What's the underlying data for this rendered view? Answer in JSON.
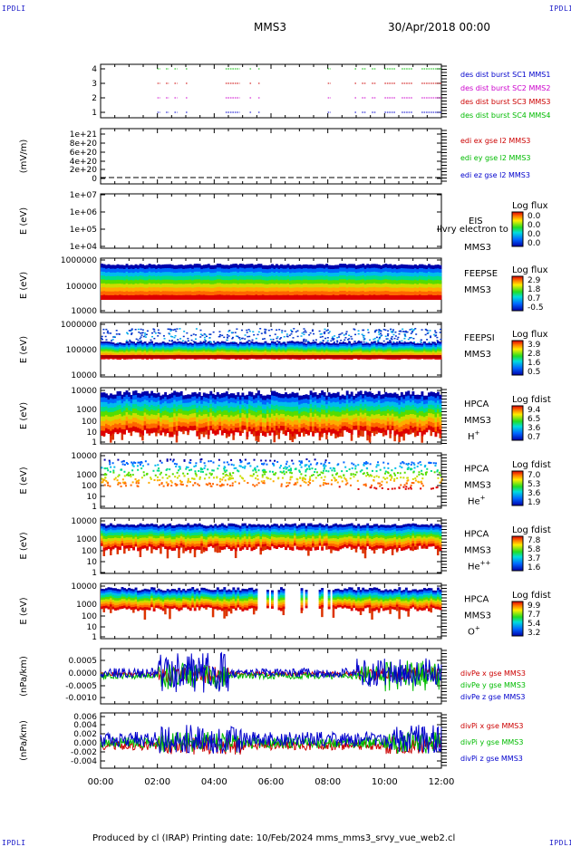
{
  "header": {
    "left_tag": "IPDLI",
    "right_tag": "IPDLI",
    "mission": "MMS3",
    "datetime": "30/Apr/2018 00:00"
  },
  "footer": {
    "left_tag": "IPDLI",
    "right_tag": "IPDLI",
    "text": "Produced by cl (IRAP)   Printing date: 10/Feb/2024   mms_mms3_srvy_vue_web2.cl"
  },
  "x_axis": {
    "ticks": [
      "00:00",
      "02:00",
      "04:00",
      "06:00",
      "08:00",
      "10:00",
      "12:00"
    ]
  },
  "panels": [
    {
      "id": "burst",
      "y_ticks": [
        "4",
        "3",
        "2",
        "1"
      ],
      "labels": [
        {
          "text": "des dist burst SC1 MMS1",
          "color": "#0000cc"
        },
        {
          "text": "des dist burst SC2 MMS2",
          "color": "#cc00cc"
        },
        {
          "text": "des dist burst SC3 MMS3",
          "color": "#cc0000"
        },
        {
          "text": "des dist burst SC4 MMS4",
          "color": "#00bb00"
        }
      ]
    },
    {
      "id": "edi",
      "ylabel": "(mV/m)",
      "y_ticks": [
        "1e+21",
        "8e+20",
        "6e+20",
        "4e+20",
        "2e+20",
        "0"
      ],
      "labels": [
        {
          "text": "edi ex gse l2 MMS3",
          "color": "#cc0000"
        },
        {
          "text": "edi ey gse l2 MMS3",
          "color": "#00bb00"
        },
        {
          "text": "edi ez gse l2 MMS3",
          "color": "#0000cc"
        }
      ]
    },
    {
      "id": "eis",
      "ylabel": "E (eV)",
      "y_ticks": [
        "1e+07",
        "1e+06",
        "1e+05",
        "1e+04"
      ],
      "instrument": "EIS",
      "overlay": "Ilvry electron to",
      "spacecraft": "MMS3",
      "colorbar": {
        "title": "Log flux",
        "ticks": [
          "0.0",
          "0.0",
          "0.0",
          "0.0"
        ]
      }
    },
    {
      "id": "feeps_e",
      "ylabel": "E (eV)",
      "y_ticks": [
        "1000000",
        "100000",
        "10000"
      ],
      "instrument": "FEEPSE",
      "spacecraft": "MMS3",
      "colorbar": {
        "title": "Log flux",
        "ticks": [
          "2.9",
          "1.8",
          "0.7",
          "-0.5"
        ]
      }
    },
    {
      "id": "feeps_i",
      "ylabel": "E (eV)",
      "y_ticks": [
        "1000000",
        "100000",
        "10000"
      ],
      "instrument": "FEEPSI",
      "spacecraft": "MMS3",
      "colorbar": {
        "title": "Log flux",
        "ticks": [
          "3.9",
          "2.8",
          "1.6",
          "0.5"
        ]
      }
    },
    {
      "id": "hpca_h",
      "ylabel": "E (eV)",
      "y_ticks": [
        "10000",
        "1000",
        "100",
        "10",
        "1"
      ],
      "instrument": "HPCA",
      "spacecraft": "MMS3",
      "species": "H",
      "species_sup": "+",
      "colorbar": {
        "title": "Log fdist",
        "ticks": [
          "9.4",
          "6.5",
          "3.6",
          "0.7"
        ]
      }
    },
    {
      "id": "hpca_he",
      "ylabel": "E (eV)",
      "y_ticks": [
        "10000",
        "1000",
        "100",
        "10",
        "1"
      ],
      "instrument": "HPCA",
      "spacecraft": "MMS3",
      "species": "He",
      "species_sup": "+",
      "colorbar": {
        "title": "Log fdist",
        "ticks": [
          "7.0",
          "5.3",
          "3.6",
          "1.9"
        ]
      }
    },
    {
      "id": "hpca_he2",
      "ylabel": "E (eV)",
      "y_ticks": [
        "10000",
        "1000",
        "100",
        "10",
        "1"
      ],
      "instrument": "HPCA",
      "spacecraft": "MMS3",
      "species": "He",
      "species_sup": "++",
      "colorbar": {
        "title": "Log fdist",
        "ticks": [
          "7.8",
          "5.8",
          "3.7",
          "1.6"
        ]
      }
    },
    {
      "id": "hpca_o",
      "ylabel": "E (eV)",
      "y_ticks": [
        "10000",
        "1000",
        "100",
        "10",
        "1"
      ],
      "instrument": "HPCA",
      "spacecraft": "MMS3",
      "species": "O",
      "species_sup": "+",
      "colorbar": {
        "title": "Log fdist",
        "ticks": [
          "9.9",
          "7.7",
          "5.4",
          "3.2"
        ]
      }
    },
    {
      "id": "divpe",
      "ylabel": "(nPa/km)",
      "y_ticks": [
        "0.0005",
        "0.0000",
        "-0.0005",
        "-0.0010"
      ],
      "labels": [
        {
          "text": "divPe x gse MMS3",
          "color": "#cc0000"
        },
        {
          "text": "divPe y gse MMS3",
          "color": "#00bb00"
        },
        {
          "text": "divPe z gse MMS3",
          "color": "#0000cc"
        }
      ]
    },
    {
      "id": "divpi",
      "ylabel": "(nPa/km)",
      "y_ticks": [
        "0.006",
        "0.004",
        "0.002",
        "0.000",
        "-0.002",
        "-0.004"
      ],
      "labels": [
        {
          "text": "divPi x gse MMS3",
          "color": "#cc0000"
        },
        {
          "text": "divPi y gse MMS3",
          "color": "#00bb00"
        },
        {
          "text": "divPi z gse MMS3",
          "color": "#0000cc"
        }
      ]
    }
  ],
  "chart_data": [
    {
      "type": "timeline",
      "title": "des dist burst",
      "x_range": [
        "00:00",
        "12:00"
      ],
      "y_categories": [
        "1",
        "2",
        "3",
        "4"
      ],
      "series": [
        {
          "name": "des dist burst SC1 MMS1"
        },
        {
          "name": "des dist burst SC2 MMS2"
        },
        {
          "name": "des dist burst SC3 MMS3"
        },
        {
          "name": "des dist burst SC4 MMS4"
        }
      ],
      "burst_intervals_hours": [
        [
          2.0,
          2.1
        ],
        [
          2.3,
          2.4
        ],
        [
          2.6,
          2.7
        ],
        [
          3.0,
          3.05
        ],
        [
          4.4,
          4.9
        ],
        [
          5.25,
          5.3
        ],
        [
          5.55,
          5.6
        ],
        [
          8.0,
          8.1
        ],
        [
          8.95,
          9.0
        ],
        [
          9.2,
          9.35
        ],
        [
          9.55,
          9.7
        ],
        [
          10.0,
          10.4
        ],
        [
          10.6,
          11.0
        ],
        [
          11.3,
          12.0
        ]
      ]
    },
    {
      "type": "line",
      "title": "edi gse l2 MMS3",
      "ylabel": "(mV/m)",
      "ylim": [
        0,
        1e+21
      ],
      "note": "flat near 0"
    },
    {
      "type": "heatmap",
      "title": "EIS",
      "ylabel": "E (eV)",
      "ylim": [
        10000.0,
        10000000.0
      ],
      "yscale": "log",
      "colorbar": "Log flux",
      "note": "empty"
    },
    {
      "type": "heatmap",
      "title": "FEEPSE",
      "ylabel": "E (eV)",
      "ylim": [
        10000.0,
        1000000.0
      ],
      "yscale": "log",
      "colorbar": "Log flux"
    },
    {
      "type": "heatmap",
      "title": "FEEPSI",
      "ylabel": "E (eV)",
      "ylim": [
        10000.0,
        1000000.0
      ],
      "yscale": "log",
      "colorbar": "Log flux"
    },
    {
      "type": "heatmap",
      "title": "HPCA H+",
      "ylabel": "E (eV)",
      "ylim": [
        1,
        10000.0
      ],
      "yscale": "log",
      "colorbar": "Log fdist"
    },
    {
      "type": "heatmap",
      "title": "HPCA He+",
      "ylabel": "E (eV)",
      "ylim": [
        1,
        10000.0
      ],
      "yscale": "log",
      "colorbar": "Log fdist"
    },
    {
      "type": "heatmap",
      "title": "HPCA He++",
      "ylabel": "E (eV)",
      "ylim": [
        1,
        10000.0
      ],
      "yscale": "log",
      "colorbar": "Log fdist"
    },
    {
      "type": "heatmap",
      "title": "HPCA O+",
      "ylabel": "E (eV)",
      "ylim": [
        1,
        10000.0
      ],
      "yscale": "log",
      "colorbar": "Log fdist"
    },
    {
      "type": "line",
      "title": "divPe gse MMS3",
      "ylabel": "(nPa/km)",
      "ylim": [
        -0.001,
        0.0007
      ],
      "series": [
        {
          "name": "divPe x gse MMS3"
        },
        {
          "name": "divPe y gse MMS3"
        },
        {
          "name": "divPe z gse MMS3"
        }
      ]
    },
    {
      "type": "line",
      "title": "divPi gse MMS3",
      "ylabel": "(nPa/km)",
      "ylim": [
        -0.005,
        0.006
      ],
      "series": [
        {
          "name": "divPi x gse MMS3"
        },
        {
          "name": "divPi y gse MMS3"
        },
        {
          "name": "divPi z gse MMS3"
        }
      ]
    }
  ]
}
